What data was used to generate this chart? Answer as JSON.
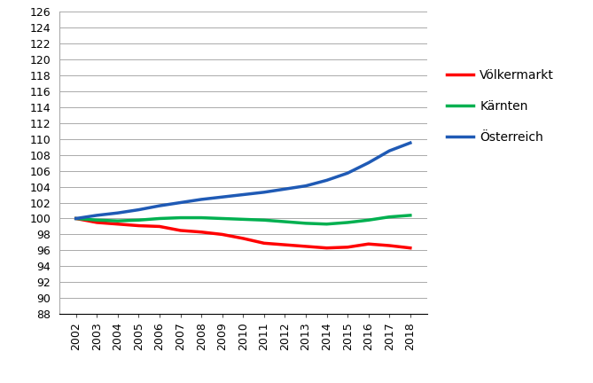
{
  "years": [
    2002,
    2003,
    2004,
    2005,
    2006,
    2007,
    2008,
    2009,
    2010,
    2011,
    2012,
    2013,
    2014,
    2015,
    2016,
    2017,
    2018
  ],
  "voelkermarkt": [
    100.0,
    99.5,
    99.3,
    99.1,
    99.0,
    98.5,
    98.3,
    98.0,
    97.5,
    96.9,
    96.7,
    96.5,
    96.3,
    96.4,
    96.8,
    96.6,
    96.3
  ],
  "kaernten": [
    100.0,
    99.8,
    99.7,
    99.8,
    100.0,
    100.1,
    100.1,
    100.0,
    99.9,
    99.8,
    99.6,
    99.4,
    99.3,
    99.5,
    99.8,
    100.2,
    100.4
  ],
  "oesterreich": [
    100.0,
    100.4,
    100.7,
    101.1,
    101.6,
    102.0,
    102.4,
    102.7,
    103.0,
    103.3,
    103.7,
    104.1,
    104.8,
    105.7,
    107.0,
    108.5,
    109.5
  ],
  "voelkermarkt_color": "#ff0000",
  "kaernten_color": "#00b050",
  "oesterreich_color": "#1f5ab5",
  "line_width": 2.5,
  "ylim": [
    88,
    126
  ],
  "yticks": [
    88,
    90,
    92,
    94,
    96,
    98,
    100,
    102,
    104,
    106,
    108,
    110,
    112,
    114,
    116,
    118,
    120,
    122,
    124,
    126
  ],
  "legend_labels": [
    "Völkermarkt",
    "Kärnten",
    "Österreich"
  ],
  "background_color": "#ffffff",
  "grid_color": "#aaaaaa",
  "font_size": 9,
  "tick_font_size": 9,
  "legend_font_size": 10
}
